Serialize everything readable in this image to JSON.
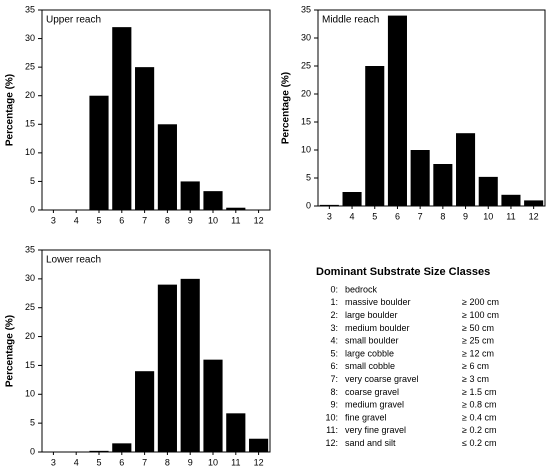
{
  "chart_data": [
    {
      "type": "bar",
      "title": "Upper reach",
      "y_label": "Percentage (%)",
      "categories": [
        "3",
        "4",
        "5",
        "6",
        "7",
        "8",
        "9",
        "10",
        "11",
        "12"
      ],
      "values": [
        0,
        0,
        20,
        32,
        25,
        15,
        5,
        3.3,
        0.4,
        0
      ],
      "color": "#000000",
      "ylim": [
        0,
        35
      ],
      "yticks": [
        0,
        5,
        10,
        15,
        20,
        25,
        30,
        35
      ]
    },
    {
      "type": "bar",
      "title": "Middle reach",
      "y_label": "Percentage (%)",
      "categories": [
        "3",
        "4",
        "5",
        "6",
        "7",
        "8",
        "9",
        "10",
        "11",
        "12"
      ],
      "values": [
        0.2,
        2.5,
        25,
        34,
        10,
        7.5,
        13,
        5.2,
        2,
        1
      ],
      "color": "#000000",
      "ylim": [
        0,
        35
      ],
      "yticks": [
        0,
        5,
        10,
        15,
        20,
        25,
        30,
        35
      ]
    },
    {
      "type": "bar",
      "title": "Lower reach",
      "y_label": "Percentage (%)",
      "categories": [
        "3",
        "4",
        "5",
        "6",
        "7",
        "8",
        "9",
        "10",
        "11",
        "12"
      ],
      "values": [
        0,
        0,
        0.2,
        1.5,
        14,
        29,
        30,
        16,
        6.7,
        2.3
      ],
      "color": "#000000",
      "ylim": [
        0,
        35
      ],
      "yticks": [
        0,
        5,
        10,
        15,
        20,
        25,
        30,
        35
      ]
    }
  ],
  "size_classes": {
    "title": "Dominant Substrate Size Classes",
    "rows": [
      [
        "0:",
        "bedrock",
        null
      ],
      [
        "1:",
        "massive boulder",
        "≥ 200 cm"
      ],
      [
        "2:",
        "large boulder",
        "≥ 100 cm"
      ],
      [
        "3:",
        "medium boulder",
        "≥ 50 cm"
      ],
      [
        "4:",
        "small boulder",
        "≥ 25 cm"
      ],
      [
        "5:",
        "large cobble",
        "≥ 12 cm"
      ],
      [
        "6:",
        "small cobble",
        "≥ 6 cm"
      ],
      [
        "7:",
        "very coarse gravel",
        "≥ 3 cm"
      ],
      [
        "8:",
        "coarse gravel",
        "≥ 1.5 cm"
      ],
      [
        "9:",
        "medium gravel",
        "≥ 0.8 cm"
      ],
      [
        "10:",
        "fine gravel",
        "≥ 0.4 cm"
      ],
      [
        "11:",
        "very fine gravel",
        "≥ 0.2 cm"
      ],
      [
        "12:",
        "sand and silt",
        "≤ 0.2 cm"
      ]
    ]
  }
}
